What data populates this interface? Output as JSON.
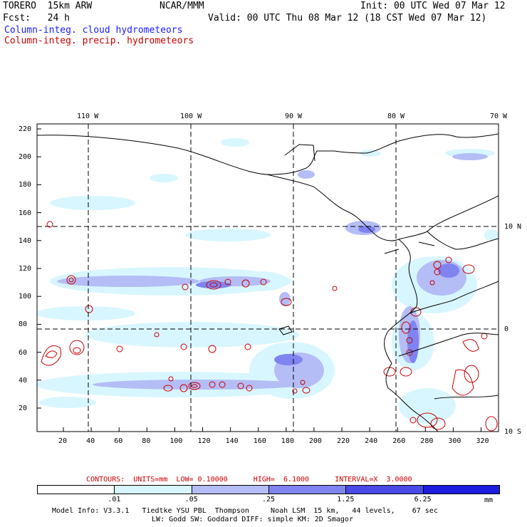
{
  "header": {
    "model": "TORERO  15km ARW",
    "org": "NCAR/MMM",
    "init": "Init: 00 UTC Wed 07 Mar 12",
    "fcst": "Fcst:   24 h",
    "valid": "Valid: 00 UTC Thu 08 Mar 12 (18 CST Wed 07 Mar 12)",
    "field1": "Column-integ. cloud hydrometeors",
    "field2": "Column-integ. precip. hydrometeors"
  },
  "colors": {
    "field1": "#1a1aff",
    "field2": "#cc0000",
    "contour": "#cc0000",
    "coast": "#000000",
    "shade": [
      "#ffffff",
      "#d8f6ff",
      "#b4bdf5",
      "#7f84f0",
      "#4a4ae8",
      "#1d1de0"
    ]
  },
  "top_lon_labels": [
    "110 W",
    "100 W",
    "90 W",
    "80 W",
    "70 W"
  ],
  "right_lat_labels": [
    "10 N",
    "0",
    "10 S"
  ],
  "y_axis_labels": [
    "220",
    "200",
    "180",
    "160",
    "140",
    "120",
    "100",
    "80",
    "60",
    "40",
    "20"
  ],
  "x_axis_labels": [
    "20",
    "40",
    "60",
    "80",
    "100",
    "120",
    "140",
    "160",
    "180",
    "200",
    "220",
    "240",
    "260",
    "280",
    "300",
    "320"
  ],
  "contour_info": "CONTOURS:  UNITS=mm  LOW= 0.10000      HIGH=  6.1000      INTERVAL=X  3.0000",
  "legend": {
    "ticks": [
      ".01",
      ".05",
      ".25",
      "1.25",
      "6.25"
    ],
    "units": "mm"
  },
  "footer": {
    "line1": "Model Info: V3.3.1   Tiedtke YSU PBL  Thompson     Noah LSM  15 km,   44 levels,    67 sec",
    "line2": "LW: Godd SW: Goddard DIFF: simple KM: 2D Smagor"
  }
}
